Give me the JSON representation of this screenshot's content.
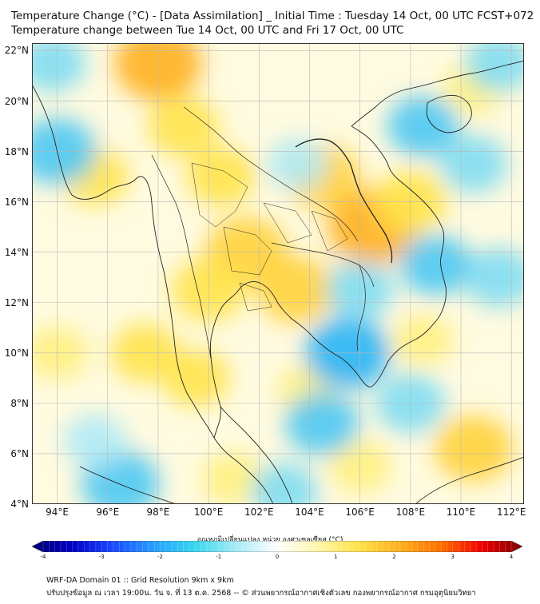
{
  "title_line1": "Temperature Change (°C) - [Data Assimilation] _ Initial Time : Tuesday 14 Oct, 00 UTC FCST+072",
  "title_line2": "Temperature change between Tue 14 Oct, 00 UTC and Fri 17 Oct, 00 UTC",
  "map": {
    "lat_range": [
      4,
      22.3
    ],
    "lon_range": [
      93,
      112.5
    ],
    "lat_ticks": [
      "22°N",
      "20°N",
      "18°N",
      "16°N",
      "14°N",
      "12°N",
      "10°N",
      "8°N",
      "6°N",
      "4°N"
    ],
    "lat_values": [
      22,
      20,
      18,
      16,
      14,
      12,
      10,
      8,
      6,
      4
    ],
    "lon_ticks": [
      "94°E",
      "96°E",
      "98°E",
      "100°E",
      "102°E",
      "104°E",
      "106°E",
      "108°E",
      "110°E",
      "112°E"
    ],
    "lon_values": [
      94,
      96,
      98,
      100,
      102,
      104,
      106,
      108,
      110,
      112
    ],
    "warm_blobs": [
      {
        "lon": 98.0,
        "lat": 21.5,
        "val": 1.9
      },
      {
        "lon": 99.0,
        "lat": 19.0,
        "val": 1.2
      },
      {
        "lon": 100.5,
        "lat": 17.0,
        "val": 1.1
      },
      {
        "lon": 101.5,
        "lat": 14.0,
        "val": 1.7
      },
      {
        "lon": 104.5,
        "lat": 17.0,
        "val": 1.4
      },
      {
        "lon": 106.5,
        "lat": 15.0,
        "val": 2.0
      },
      {
        "lon": 108.0,
        "lat": 16.0,
        "val": 1.3
      },
      {
        "lon": 103.5,
        "lat": 12.5,
        "val": 1.5
      },
      {
        "lon": 100.0,
        "lat": 12.5,
        "val": 1.3
      },
      {
        "lon": 95.5,
        "lat": 17.0,
        "val": 1.0
      },
      {
        "lon": 94.0,
        "lat": 10.0,
        "val": 0.8
      },
      {
        "lon": 97.5,
        "lat": 10.0,
        "val": 1.1
      },
      {
        "lon": 99.5,
        "lat": 9.0,
        "val": 1.0
      },
      {
        "lon": 104.0,
        "lat": 8.5,
        "val": 0.8
      },
      {
        "lon": 110.5,
        "lat": 6.2,
        "val": 1.5
      },
      {
        "lon": 106.0,
        "lat": 5.5,
        "val": 0.8
      },
      {
        "lon": 108.5,
        "lat": 10.5,
        "val": 0.7
      },
      {
        "lon": 101.0,
        "lat": 5.0,
        "val": 0.8
      },
      {
        "lon": 110.5,
        "lat": 20.5,
        "val": 0.7
      }
    ],
    "cool_blobs": [
      {
        "lon": 94.0,
        "lat": 18.0,
        "val": -1.5
      },
      {
        "lon": 93.8,
        "lat": 21.5,
        "val": -1.0
      },
      {
        "lon": 108.5,
        "lat": 19.0,
        "val": -1.2
      },
      {
        "lon": 110.5,
        "lat": 17.5,
        "val": -1.0
      },
      {
        "lon": 111.5,
        "lat": 21.5,
        "val": -1.0
      },
      {
        "lon": 105.5,
        "lat": 10.0,
        "val": -1.8
      },
      {
        "lon": 104.5,
        "lat": 7.2,
        "val": -1.3
      },
      {
        "lon": 108.0,
        "lat": 8.0,
        "val": -1.1
      },
      {
        "lon": 96.5,
        "lat": 4.8,
        "val": -1.5
      },
      {
        "lon": 106.0,
        "lat": 12.5,
        "val": -1.0
      },
      {
        "lon": 111.5,
        "lat": 13.0,
        "val": -1.1
      },
      {
        "lon": 109.0,
        "lat": 13.5,
        "val": -1.2
      },
      {
        "lon": 103.0,
        "lat": 4.5,
        "val": -1.0
      },
      {
        "lon": 95.5,
        "lat": 6.5,
        "val": -0.8
      },
      {
        "lon": 103.5,
        "lat": 17.5,
        "val": -0.7
      }
    ]
  },
  "colorbar": {
    "title": "อุณหภูมิเปลี่ยนแปลง หน่วย องศาเซลเซียส (°C)",
    "range": [
      -4,
      4
    ],
    "ticks": [
      "-4",
      "-3",
      "-2",
      "-1",
      "0",
      "1",
      "2",
      "3",
      "4"
    ],
    "tick_values": [
      -4,
      -3,
      -2,
      -1,
      0,
      1,
      2,
      3,
      4
    ],
    "colors": [
      "#000070",
      "#0000c8",
      "#1a4bff",
      "#29a0ff",
      "#38d8f0",
      "#a8ecf7",
      "#ffffff",
      "#fff6a8",
      "#ffe34a",
      "#ffb020",
      "#ff7000",
      "#f00000",
      "#800000"
    ]
  },
  "footer_line1": "WRF-DA Domain 01 :: Grid Resolution 9km x 9km",
  "footer_line2": "ปรับปรุงข้อมูล ณ เวลา 19:00น. วัน จ. ที่ 13 ต.ค. 2568 -- © ส่วนพยากรณ์อากาศเชิงตัวเลข กองพยากรณ์อากาศ กรมอุตุนิยมวิทยา"
}
